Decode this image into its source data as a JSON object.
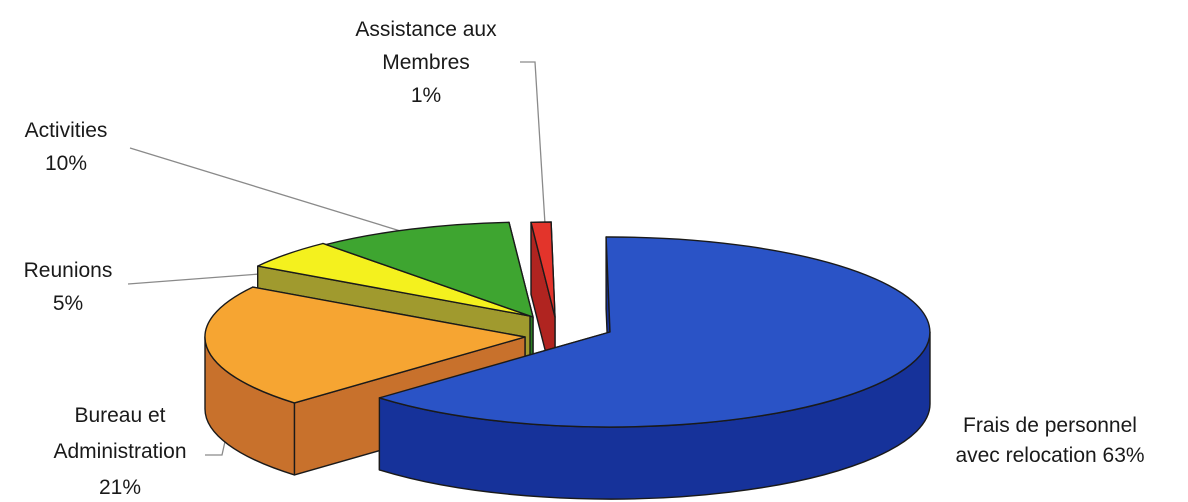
{
  "chart_data": {
    "type": "pie",
    "title": "",
    "legend": "none",
    "grid": false,
    "slices": [
      {
        "label": "Frais de personnel avec relocation 63%",
        "label_lines": [
          "Frais de personnel",
          "avec relocation 63%"
        ],
        "value": 63,
        "color_top": "#2a53c6",
        "color_side": "#16329a"
      },
      {
        "label": "Bureau et Administration 21%",
        "label_lines": [
          "Bureau et",
          "Administration",
          "21%"
        ],
        "value": 21,
        "color_top": "#f6a532",
        "color_side": "#c8712c"
      },
      {
        "label": "Reunions 5%",
        "label_lines": [
          "Reunions",
          "5%"
        ],
        "value": 5,
        "color_top": "#f4f11e",
        "color_side": "#a09a2e"
      },
      {
        "label": "Activities 10%",
        "label_lines": [
          "Activities",
          "10%"
        ],
        "value": 10,
        "color_top": "#3ea530",
        "color_side": "#2a7d22"
      },
      {
        "label": "Assistance aux Membres 1%",
        "label_lines": [
          "Assistance aux",
          "Membres",
          "1%"
        ],
        "value": 1,
        "color_top": "#e3342b",
        "color_side": "#b02420"
      }
    ]
  }
}
